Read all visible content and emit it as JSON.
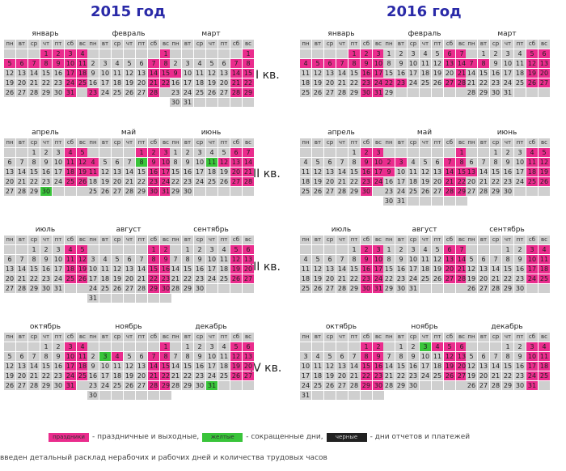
{
  "years": [
    {
      "label": "2015 год",
      "year": 2015,
      "left": 5
    },
    {
      "label": "2016 год",
      "year": 2016,
      "left": 370
    }
  ],
  "weekday_headers": [
    "пн",
    "вт",
    "ср",
    "чт",
    "пт",
    "сб",
    "вс"
  ],
  "quarters": [
    "I кв.",
    "II кв.",
    "III кв.",
    "IV кв."
  ],
  "month_names": [
    "январь",
    "февраль",
    "март",
    "апрель",
    "май",
    "июнь",
    "июль",
    "август",
    "сентябрь",
    "октябрь",
    "ноябрь",
    "декабрь"
  ],
  "calendars": {
    "2015": {
      "holidays": [
        "1-1",
        "1-2",
        "1-3",
        "1-4",
        "1-5",
        "1-6",
        "1-7",
        "1-8",
        "1-9",
        "1-10",
        "1-11",
        "1-17",
        "1-18",
        "1-24",
        "1-25",
        "1-31",
        "2-1",
        "2-7",
        "2-8",
        "2-14",
        "2-15",
        "2-21",
        "2-22",
        "2-23",
        "2-28",
        "3-1",
        "3-7",
        "3-8",
        "3-9",
        "3-14",
        "3-15",
        "3-21",
        "3-22",
        "3-28",
        "3-29",
        "4-4",
        "4-5",
        "4-11",
        "4-12",
        "4-18",
        "4-19",
        "4-25",
        "4-26",
        "5-1",
        "5-2",
        "5-3",
        "5-4",
        "5-9",
        "5-10",
        "5-11",
        "5-16",
        "5-17",
        "5-23",
        "5-24",
        "5-30",
        "5-31",
        "6-6",
        "6-7",
        "6-12",
        "6-13",
        "6-14",
        "6-20",
        "6-21",
        "6-27",
        "6-28",
        "7-4",
        "7-5",
        "7-11",
        "7-12",
        "7-18",
        "7-19",
        "7-25",
        "7-26",
        "8-1",
        "8-2",
        "8-8",
        "8-9",
        "8-15",
        "8-16",
        "8-22",
        "8-23",
        "8-29",
        "8-30",
        "9-5",
        "9-6",
        "9-12",
        "9-13",
        "9-19",
        "9-20",
        "9-26",
        "9-27",
        "10-3",
        "10-4",
        "10-10",
        "10-11",
        "10-17",
        "10-18",
        "10-24",
        "10-25",
        "10-31",
        "11-1",
        "11-4",
        "11-7",
        "11-8",
        "11-14",
        "11-15",
        "11-21",
        "11-22",
        "11-28",
        "11-29",
        "12-5",
        "12-6",
        "12-12",
        "12-13",
        "12-19",
        "12-20",
        "12-26",
        "12-27"
      ],
      "short_days": [
        "4-30",
        "5-8",
        "6-11",
        "11-3",
        "12-31"
      ]
    },
    "2016": {
      "holidays": [
        "1-1",
        "1-2",
        "1-3",
        "1-4",
        "1-5",
        "1-6",
        "1-7",
        "1-8",
        "1-9",
        "1-10",
        "1-16",
        "1-17",
        "1-23",
        "1-24",
        "1-30",
        "1-31",
        "2-6",
        "2-7",
        "2-13",
        "2-14",
        "2-21",
        "2-22",
        "2-23",
        "2-27",
        "2-28",
        "3-5",
        "3-6",
        "3-7",
        "3-8",
        "3-12",
        "3-13",
        "3-19",
        "3-20",
        "3-26",
        "3-27",
        "4-2",
        "4-3",
        "4-9",
        "4-10",
        "4-16",
        "4-17",
        "4-23",
        "4-24",
        "4-30",
        "5-1",
        "5-2",
        "5-3",
        "5-7",
        "5-8",
        "5-9",
        "5-14",
        "5-15",
        "5-21",
        "5-22",
        "5-28",
        "5-29",
        "6-4",
        "6-5",
        "6-11",
        "6-12",
        "6-13",
        "6-18",
        "6-19",
        "6-25",
        "6-26",
        "7-2",
        "7-3",
        "7-9",
        "7-10",
        "7-16",
        "7-17",
        "7-23",
        "7-24",
        "7-30",
        "7-31",
        "8-6",
        "8-7",
        "8-13",
        "8-14",
        "8-20",
        "8-21",
        "8-27",
        "8-28",
        "9-3",
        "9-4",
        "9-10",
        "9-11",
        "9-17",
        "9-18",
        "9-24",
        "9-25",
        "10-1",
        "10-2",
        "10-8",
        "10-9",
        "10-15",
        "10-16",
        "10-22",
        "10-23",
        "10-29",
        "10-30",
        "11-4",
        "11-5",
        "11-6",
        "11-12",
        "11-13",
        "11-19",
        "11-20",
        "11-26",
        "11-27",
        "12-3",
        "12-4",
        "12-10",
        "12-11",
        "12-17",
        "12-18",
        "12-24",
        "12-25",
        "12-31"
      ],
      "short_days": [
        "11-3"
      ]
    }
  },
  "legend": {
    "holiday_swatch": "праздники",
    "holiday_text": "- праздничные и выходные,",
    "short_swatch": "желтые",
    "short_text": "- сокращенные дни,",
    "report_swatch": "черные",
    "report_text": "- дни отчетов и платежей"
  },
  "footnote": "введен детальный расклад нерабочих и рабочих дней и количества трудовых часов",
  "colors": {
    "holiday": "#ea2c8d",
    "short_day": "#39c43a",
    "workday": "#cfcfcf",
    "title": "#2a2aa8"
  }
}
